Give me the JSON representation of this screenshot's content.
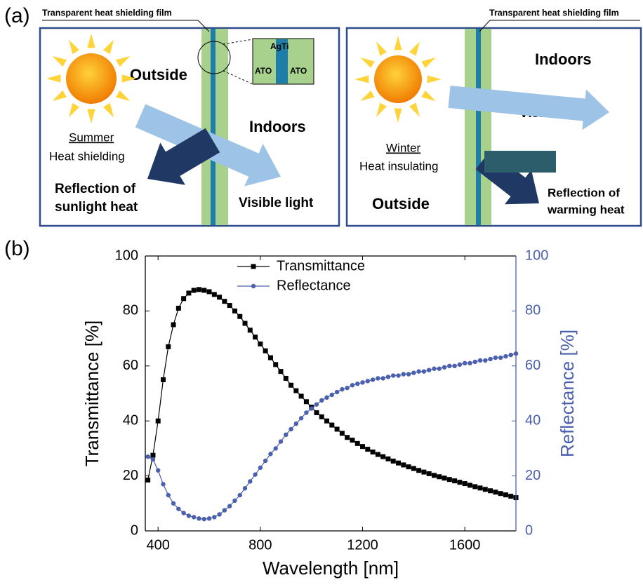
{
  "panel_a": {
    "label": "(a)",
    "left": {
      "film": "Transparent heat shielding film",
      "outside": "Outside",
      "indoors": "Indoors",
      "season": "Summer",
      "mode": "Heat shielding",
      "reflection": [
        "Reflection of",
        "sunlight heat"
      ],
      "visible": "Visible light",
      "inset": {
        "top": "AgTi",
        "left": "ATO",
        "right": "ATO"
      }
    },
    "right": {
      "film": "Transparent heat shielding film",
      "indoors": "Indoors",
      "visible": "Visible light",
      "season": "Winter",
      "mode": "Heat insulating",
      "outside": "Outside",
      "reflection": [
        "Reflection of",
        "warming heat"
      ]
    }
  },
  "panel_b": {
    "label": "(b)"
  },
  "chart_data": {
    "type": "line",
    "x_label": "Wavelength [nm]",
    "y_label": "Transmittance [%]",
    "y2_label": "Reflectance [%]",
    "xlim": [
      350,
      1800
    ],
    "xticks": [
      400,
      800,
      1200,
      1600
    ],
    "ylim": [
      0,
      100
    ],
    "yticks": [
      0,
      20,
      40,
      60,
      80,
      100
    ],
    "y2lim": [
      0,
      100
    ],
    "y2ticks": [
      0,
      20,
      40,
      60,
      80,
      100
    ],
    "x": [
      360,
      380,
      400,
      420,
      440,
      460,
      480,
      500,
      520,
      540,
      560,
      580,
      600,
      620,
      640,
      660,
      680,
      700,
      720,
      740,
      760,
      780,
      800,
      820,
      840,
      860,
      880,
      900,
      920,
      940,
      960,
      980,
      1000,
      1020,
      1040,
      1060,
      1080,
      1100,
      1120,
      1140,
      1160,
      1180,
      1200,
      1220,
      1240,
      1260,
      1280,
      1300,
      1320,
      1340,
      1360,
      1380,
      1400,
      1420,
      1440,
      1460,
      1480,
      1500,
      1520,
      1540,
      1560,
      1580,
      1600,
      1620,
      1640,
      1660,
      1680,
      1700,
      1720,
      1740,
      1760,
      1780,
      1800
    ],
    "series": [
      {
        "name": "Transmittance",
        "color": "#000000",
        "marker": "square",
        "values": [
          18.5,
          27.5,
          40,
          55,
          67,
          75,
          81,
          84.5,
          86.5,
          87.5,
          87.8,
          87.5,
          87,
          86,
          85,
          83.5,
          82,
          80,
          78,
          75.5,
          73,
          70.5,
          68,
          65.5,
          63,
          60.5,
          58,
          55.5,
          53,
          51,
          49,
          47,
          45,
          43,
          41.5,
          40,
          38.5,
          37,
          35.5,
          34,
          33,
          31.8,
          30.7,
          29.7,
          28.7,
          27.8,
          27,
          26.2,
          25.4,
          24.7,
          24,
          23.3,
          22.7,
          22,
          21.4,
          20.8,
          20.2,
          19.7,
          19.2,
          18.7,
          18.2,
          17.7,
          17.2,
          16.6,
          16.1,
          15.6,
          15.1,
          14.6,
          14.1,
          13.6,
          13.1,
          12.6,
          12.1
        ]
      },
      {
        "name": "Reflectance",
        "color": "#4a5fae",
        "marker": "circle",
        "axis": "y2",
        "values": [
          27,
          26,
          22,
          17,
          13,
          10,
          8,
          6.5,
          5.5,
          5,
          4.5,
          4.3,
          4.5,
          5,
          6,
          7.5,
          9,
          11,
          13,
          15.5,
          18,
          20.5,
          23,
          25.5,
          28,
          30,
          32.5,
          35,
          37,
          39,
          41,
          43,
          44.5,
          46,
          47.5,
          48.5,
          49.5,
          50.5,
          51.5,
          52,
          53,
          53.5,
          54,
          54.5,
          55,
          55.5,
          55.5,
          56,
          56.5,
          56.5,
          57,
          57,
          57.5,
          58,
          58,
          58.5,
          59,
          59,
          59.5,
          60,
          60,
          60.5,
          61,
          61,
          61.5,
          62,
          62,
          62.5,
          63,
          63,
          63.5,
          64,
          64.5
        ]
      }
    ]
  }
}
